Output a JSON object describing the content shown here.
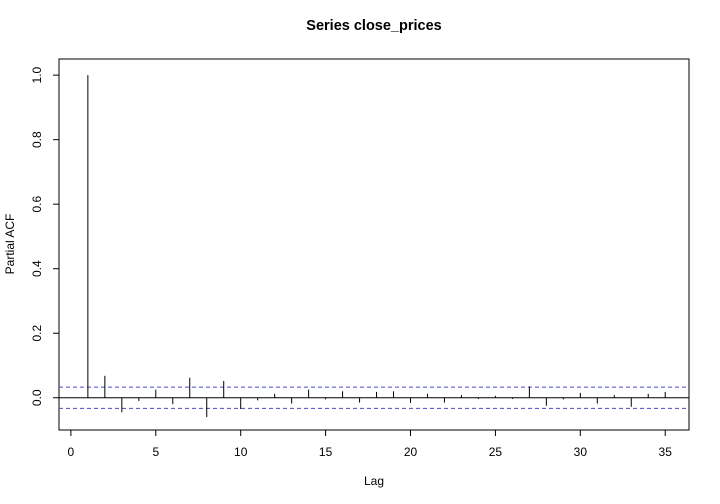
{
  "chart_data": {
    "type": "bar",
    "title": "Series  close_prices",
    "xlabel": "Lag",
    "ylabel": "Partial ACF",
    "xlim": [
      -0.7,
      36.4
    ],
    "ylim": [
      -0.1,
      1.05
    ],
    "x_ticks": [
      0,
      5,
      10,
      15,
      20,
      25,
      30,
      35
    ],
    "y_ticks": [
      0.0,
      0.2,
      0.4,
      0.6,
      0.8,
      1.0
    ],
    "x_tick_labels": [
      "0",
      "5",
      "10",
      "15",
      "20",
      "25",
      "30",
      "35"
    ],
    "y_tick_labels": [
      "0.0",
      "0.2",
      "0.4",
      "0.6",
      "0.8",
      "1.0"
    ],
    "confidence_bound": 0.033,
    "grid": false,
    "lags": [
      1,
      2,
      3,
      4,
      5,
      6,
      7,
      8,
      9,
      10,
      11,
      12,
      13,
      14,
      15,
      16,
      17,
      18,
      19,
      20,
      21,
      22,
      23,
      24,
      25,
      26,
      27,
      28,
      29,
      30,
      31,
      32,
      33,
      34,
      35
    ],
    "values": [
      1.0,
      0.068,
      -0.045,
      -0.01,
      0.025,
      -0.02,
      0.062,
      -0.06,
      0.052,
      -0.035,
      -0.008,
      0.012,
      -0.018,
      0.025,
      -0.005,
      0.02,
      -0.015,
      0.018,
      0.02,
      -0.016,
      0.012,
      -0.015,
      0.008,
      -0.004,
      0.006,
      -0.004,
      0.035,
      -0.025,
      -0.005,
      0.015,
      -0.018,
      0.008,
      -0.028,
      0.012,
      0.018
    ],
    "colors": {
      "bars": "#000000",
      "bounds": "#4a4ad0",
      "axis": "#000000"
    }
  }
}
